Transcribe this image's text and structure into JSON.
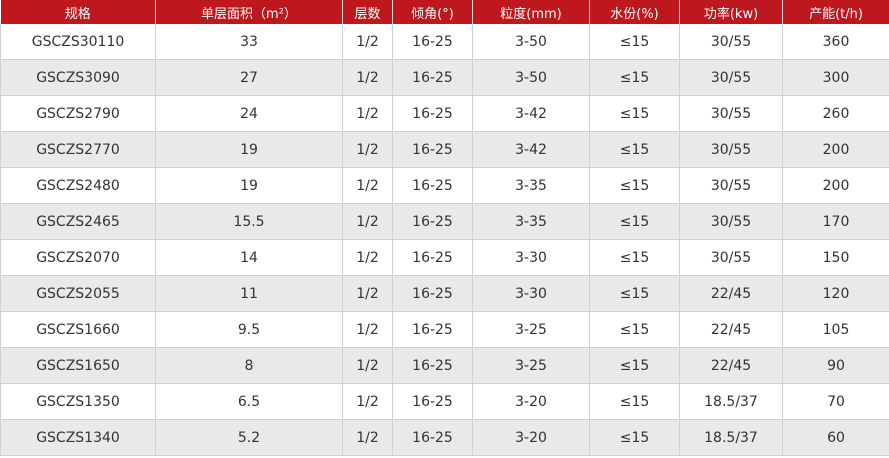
{
  "colors": {
    "header": "#be171d",
    "alt_row": "#e9e9e9"
  },
  "headers": [
    "规格",
    "单层面积（m²）",
    "层数",
    "倾角(°)",
    "粒度(mm)",
    "水份(%)",
    "功率(kw)",
    "产能(t/h)"
  ],
  "rows": [
    [
      "GSCZS30110",
      "33",
      "1/2",
      "16-25",
      "3-50",
      "≤15",
      "30/55",
      "360"
    ],
    [
      "GSCZS3090",
      "27",
      "1/2",
      "16-25",
      "3-50",
      "≤15",
      "30/55",
      "300"
    ],
    [
      "GSCZS2790",
      "24",
      "1/2",
      "16-25",
      "3-42",
      "≤15",
      "30/55",
      "260"
    ],
    [
      "GSCZS2770",
      "19",
      "1/2",
      "16-25",
      "3-42",
      "≤15",
      "30/55",
      "200"
    ],
    [
      "GSCZS2480",
      "19",
      "1/2",
      "16-25",
      "3-35",
      "≤15",
      "30/55",
      "200"
    ],
    [
      "GSCZS2465",
      "15.5",
      "1/2",
      "16-25",
      "3-35",
      "≤15",
      "30/55",
      "170"
    ],
    [
      "GSCZS2070",
      "14",
      "1/2",
      "16-25",
      "3-30",
      "≤15",
      "30/55",
      "150"
    ],
    [
      "GSCZS2055",
      "11",
      "1/2",
      "16-25",
      "3-30",
      "≤15",
      "22/45",
      "120"
    ],
    [
      "GSCZS1660",
      "9.5",
      "1/2",
      "16-25",
      "3-25",
      "≤15",
      "22/45",
      "105"
    ],
    [
      "GSCZS1650",
      "8",
      "1/2",
      "16-25",
      "3-25",
      "≤15",
      "22/45",
      "90"
    ],
    [
      "GSCZS1350",
      "6.5",
      "1/2",
      "16-25",
      "3-20",
      "≤15",
      "18.5/37",
      "70"
    ],
    [
      "GSCZS1340",
      "5.2",
      "1/2",
      "16-25",
      "3-20",
      "≤15",
      "18.5/37",
      "60"
    ]
  ]
}
